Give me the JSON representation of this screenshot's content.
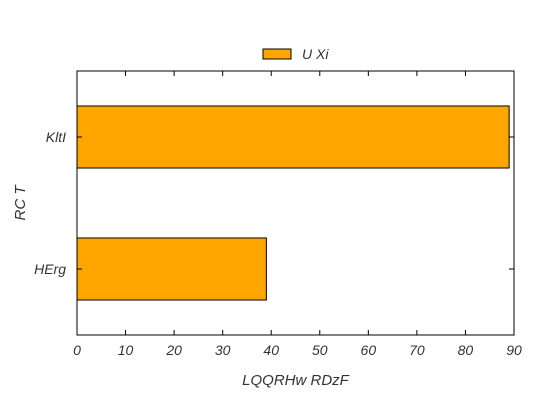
{
  "chart_data": {
    "type": "bar",
    "orientation": "horizontal",
    "categories": [
      "HErg",
      "KltI"
    ],
    "series": [
      {
        "name": "U Xi",
        "values": [
          39,
          89
        ],
        "color": "#FFA500"
      }
    ],
    "xlabel": "LQQRHw  RDzF",
    "ylabel": "RC  T",
    "xlim": [
      0,
      90
    ],
    "xticks": [
      0,
      10,
      20,
      30,
      40,
      50,
      60,
      70,
      80,
      90
    ],
    "grid": false,
    "legend": "top-center",
    "bar_edge_color": "#000000"
  }
}
